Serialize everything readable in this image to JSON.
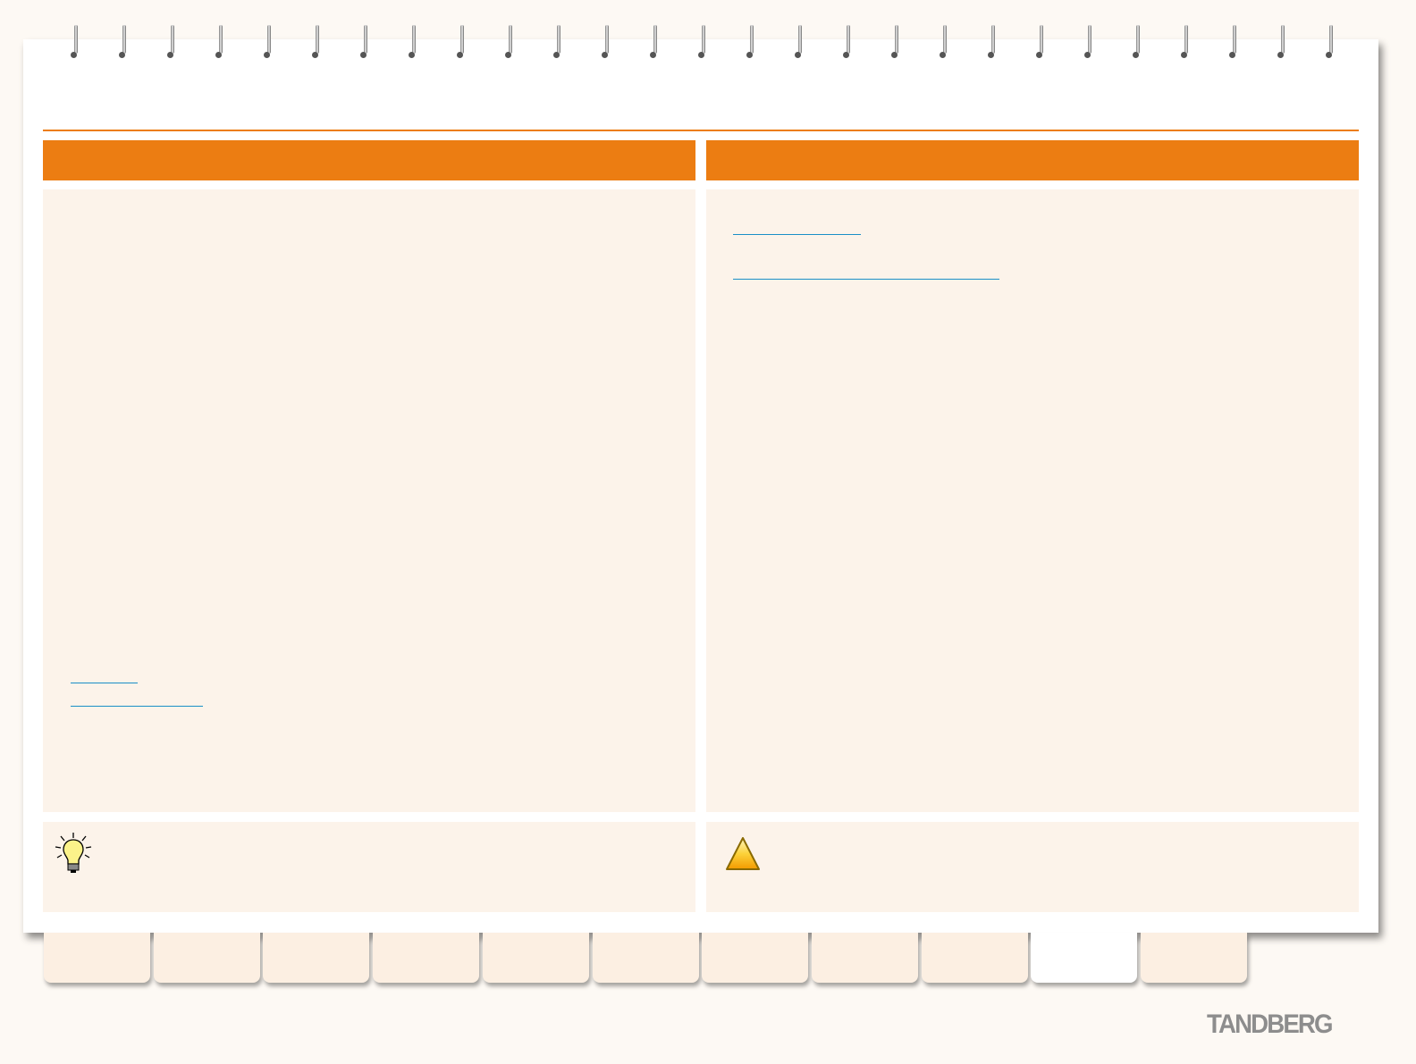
{
  "brand": {
    "logo_text": "TANDBERG",
    "accent_color": "#ec7d12",
    "panel_color": "#fcf3ea",
    "link_color": "#1a8fc7"
  },
  "binding": {
    "ring_count": 27
  },
  "tabs": {
    "count": 11,
    "active_index": 9
  },
  "icons": {
    "tip": "lightbulb-icon",
    "warning": "warning-triangle-icon"
  }
}
